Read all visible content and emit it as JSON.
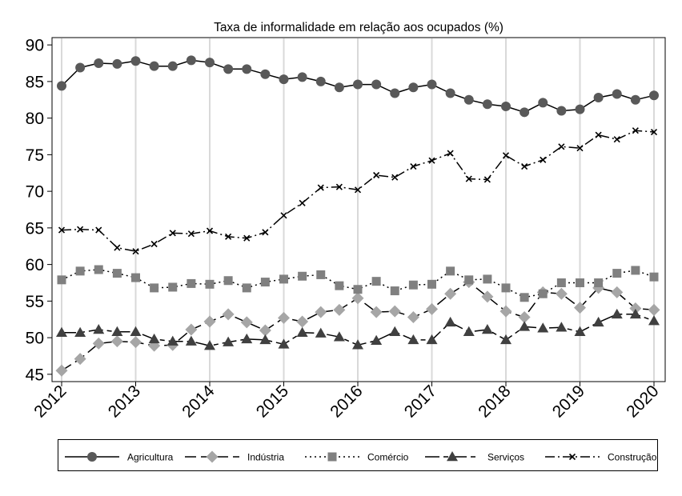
{
  "chart_data": {
    "type": "line",
    "title": "Taxa de informalidade em relação aos ocupados (%)",
    "xlabel": "",
    "ylabel": "",
    "ylim": [
      44,
      91
    ],
    "xlim": [
      2011.95,
      2020.05
    ],
    "yticks": [
      45,
      50,
      55,
      60,
      65,
      70,
      75,
      80,
      85,
      90
    ],
    "xticks": [
      2012,
      2013,
      2014,
      2015,
      2016,
      2017,
      2018,
      2019,
      2020
    ],
    "x_grid": true,
    "y_grid": false,
    "legend_position": "bottom",
    "x": [
      2012.0,
      2012.25,
      2012.5,
      2012.75,
      2013.0,
      2013.25,
      2013.5,
      2013.75,
      2014.0,
      2014.25,
      2014.5,
      2014.75,
      2015.0,
      2015.25,
      2015.5,
      2015.75,
      2016.0,
      2016.25,
      2016.5,
      2016.75,
      2017.0,
      2017.25,
      2017.5,
      2017.75,
      2018.0,
      2018.25,
      2018.5,
      2018.75,
      2019.0,
      2019.25,
      2019.5,
      2019.75,
      2020.0
    ],
    "series": [
      {
        "name": "Agricultura",
        "marker": "circle",
        "dash": "solid",
        "color": "#595959",
        "values": [
          84.4,
          86.9,
          87.5,
          87.4,
          87.8,
          87.1,
          87.1,
          87.9,
          87.6,
          86.7,
          86.7,
          86.0,
          85.3,
          85.6,
          85.0,
          84.2,
          84.6,
          84.6,
          83.4,
          84.2,
          84.6,
          83.4,
          82.5,
          81.9,
          81.6,
          80.8,
          82.1,
          81.0,
          81.2,
          82.8,
          83.3,
          82.5,
          83.1
        ]
      },
      {
        "name": "Indústria",
        "marker": "diamond",
        "dash": "long-dash",
        "color": "#a6a6a6",
        "values": [
          45.5,
          47.1,
          49.2,
          49.5,
          49.4,
          48.9,
          49.0,
          51.1,
          52.2,
          53.2,
          52.1,
          51.0,
          52.7,
          52.2,
          53.5,
          53.8,
          55.4,
          53.5,
          53.6,
          52.8,
          53.9,
          56.0,
          57.6,
          55.6,
          53.6,
          52.8,
          56.2,
          56.0,
          54.1,
          56.8,
          56.2,
          54.0,
          53.8
        ]
      },
      {
        "name": "Comércio",
        "marker": "square",
        "dash": "dotted",
        "color": "#808080",
        "values": [
          57.9,
          59.1,
          59.3,
          58.8,
          58.2,
          56.8,
          56.9,
          57.4,
          57.3,
          57.8,
          56.8,
          57.6,
          58.0,
          58.4,
          58.6,
          57.1,
          56.6,
          57.7,
          56.4,
          57.2,
          57.3,
          59.1,
          57.9,
          58.0,
          56.8,
          55.5,
          56.0,
          57.5,
          57.5,
          57.5,
          58.8,
          59.2,
          58.3
        ]
      },
      {
        "name": "Serviços",
        "marker": "triangle",
        "dash": "long-dash-short",
        "color": "#404040",
        "values": [
          50.7,
          50.7,
          51.1,
          50.8,
          50.8,
          49.8,
          49.5,
          49.5,
          48.9,
          49.4,
          49.8,
          49.7,
          49.1,
          50.7,
          50.6,
          50.1,
          49.0,
          49.6,
          50.8,
          49.7,
          49.7,
          52.1,
          50.8,
          51.1,
          49.7,
          51.5,
          51.3,
          51.4,
          50.8,
          52.1,
          53.2,
          53.2,
          52.3
        ]
      },
      {
        "name": "Construção",
        "marker": "x",
        "dash": "dash-dot",
        "color": "#000000",
        "values": [
          64.7,
          64.8,
          64.7,
          62.3,
          61.8,
          62.8,
          64.3,
          64.2,
          64.6,
          63.8,
          63.6,
          64.4,
          66.7,
          68.4,
          70.5,
          70.6,
          70.2,
          72.2,
          71.9,
          73.4,
          74.2,
          75.2,
          71.7,
          71.6,
          74.9,
          73.4,
          74.3,
          76.1,
          75.9,
          77.7,
          77.1,
          78.3,
          78.1
        ]
      }
    ]
  }
}
